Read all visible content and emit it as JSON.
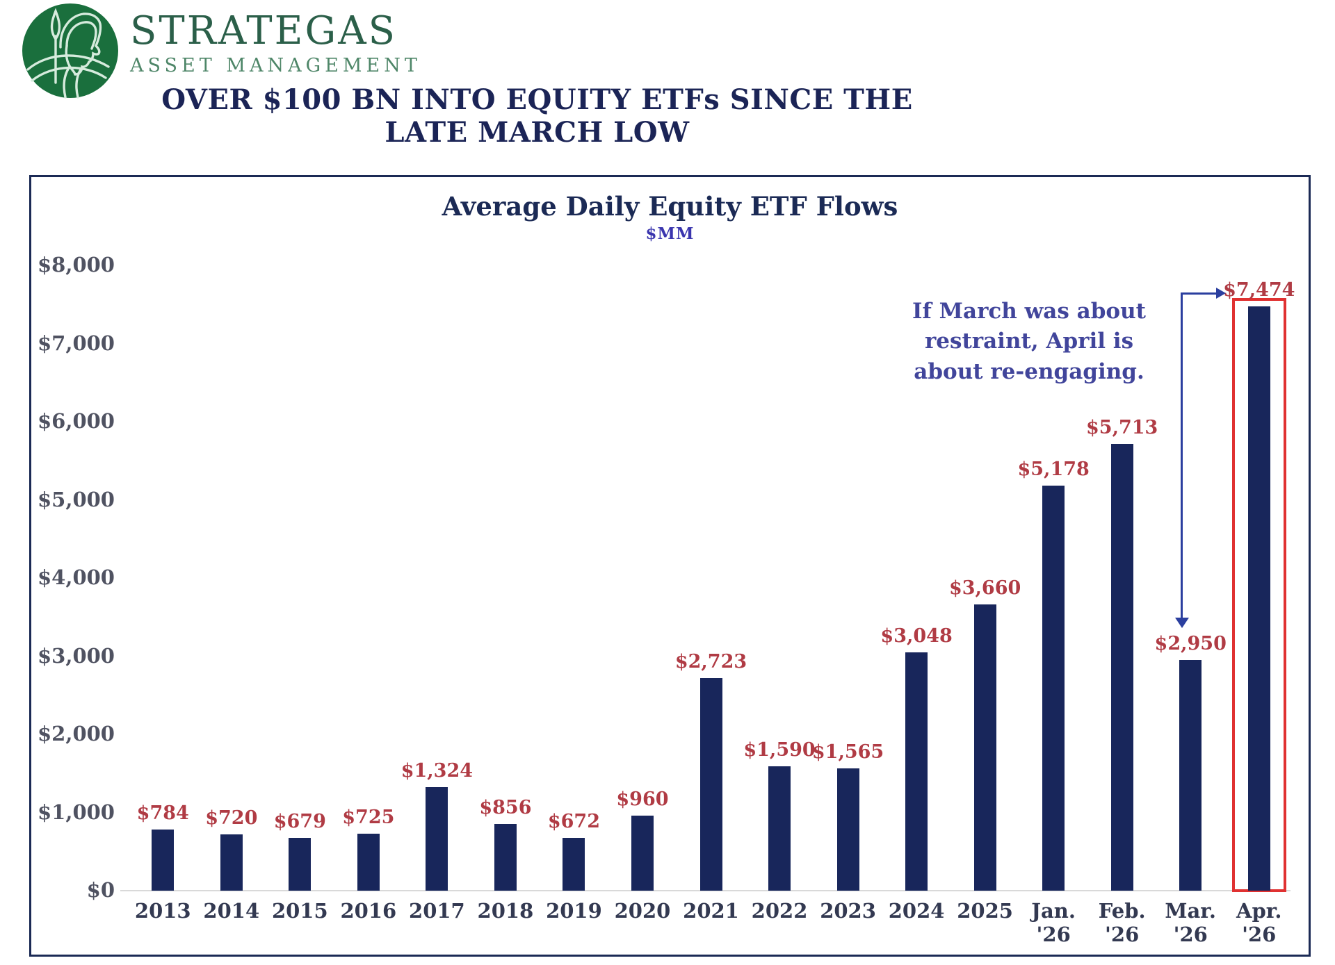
{
  "brand": {
    "name": "STRATEGAS",
    "subtitle": "ASSET MANAGEMENT"
  },
  "headline": "OVER $100 BN INTO EQUITY ETFs SINCE THE LATE MARCH LOW",
  "chart_data": {
    "type": "bar",
    "title": "Average Daily Equity ETF Flows",
    "subtitle": "$MM",
    "categories": [
      "2013",
      "2014",
      "2015",
      "2016",
      "2017",
      "2018",
      "2019",
      "2020",
      "2021",
      "2022",
      "2023",
      "2024",
      "2025",
      "Jan.\n'26",
      "Feb.\n'26",
      "Mar.\n'26",
      "Apr.\n'26"
    ],
    "values": [
      784,
      720,
      679,
      725,
      1324,
      856,
      672,
      960,
      2723,
      1590,
      1565,
      3048,
      3660,
      5178,
      5713,
      2950,
      7474
    ],
    "value_labels": [
      "$784",
      "$720",
      "$679",
      "$725",
      "$1,324",
      "$856",
      "$672",
      "$960",
      "$2,723",
      "$1,590",
      "$1,565",
      "$3,048",
      "$3,660",
      "$5,178",
      "$5,713",
      "$2,950",
      "$7,474"
    ],
    "ylim": [
      0,
      8000
    ],
    "yticks": [
      0,
      1000,
      2000,
      3000,
      4000,
      5000,
      6000,
      7000,
      8000
    ],
    "ytick_labels": [
      "$0",
      "$1,000",
      "$2,000",
      "$3,000",
      "$4,000",
      "$5,000",
      "$6,000",
      "$7,000",
      "$8,000"
    ],
    "grid": false,
    "legend": null,
    "highlight": {
      "category": "Apr. '26",
      "style": "red-outline-box"
    },
    "annotation": {
      "text": "If March was about\nrestraint, April is\nabout re-engaging.",
      "arrow_points_down_to": "Mar. '26",
      "arrow_points_right_to": "$7,474"
    },
    "colors": {
      "bar": "#18265B",
      "value_label": "#B03B44",
      "highlight_box": "#E03131",
      "arrow": "#2B3F9F",
      "annotation_text": "#41459B",
      "title": "#1B2A55",
      "headline": "#1B2456",
      "brand_green": "#1A6F3D"
    }
  }
}
